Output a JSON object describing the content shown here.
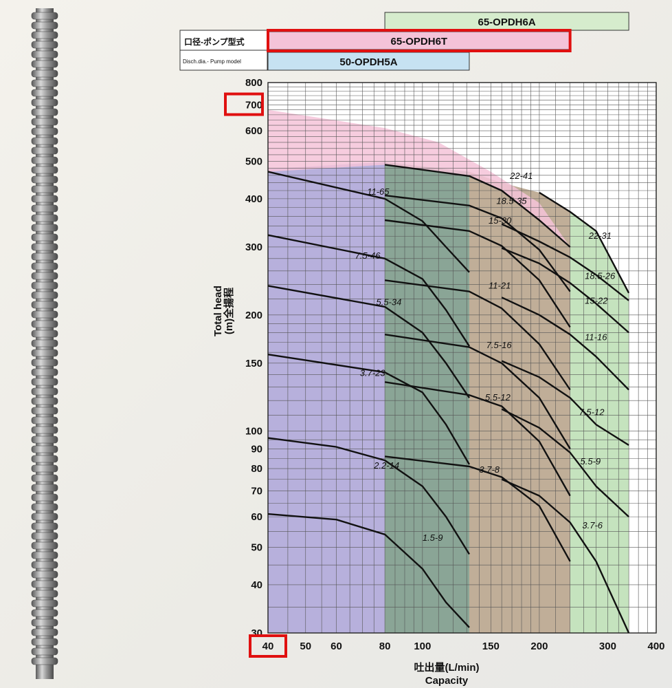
{
  "chart_data": {
    "type": "line",
    "x_scale": "log",
    "y_scale": "log",
    "xlim": [
      40,
      400
    ],
    "ylim": [
      30,
      800
    ],
    "x_ticks": [
      "40",
      "50",
      "60",
      "80",
      "100",
      "150",
      "200",
      "300",
      "400"
    ],
    "x_tick_values": [
      40,
      50,
      60,
      80,
      100,
      150,
      200,
      300,
      400
    ],
    "y_ticks": [
      "800",
      "700",
      "600",
      "500",
      "400",
      "300",
      "200",
      "150",
      "100",
      "90",
      "80",
      "70",
      "60",
      "50",
      "40",
      "30"
    ],
    "y_tick_values": [
      800,
      700,
      600,
      500,
      400,
      300,
      200,
      150,
      100,
      90,
      80,
      70,
      60,
      50,
      40,
      30
    ],
    "xlabel_jp": "吐出量(L/min)",
    "xlabel_en": "Capacity",
    "ylabel_en": "Total head",
    "ylabel_jp": "(m)全揚程",
    "header_label_jp": "口径-ポンプ型式",
    "header_label_en": "Disch.dia.- Pump model",
    "grid": true,
    "models": [
      {
        "name": "65-OPDH6A",
        "x_range": [
          80,
          340
        ],
        "color": "#d6eccd"
      },
      {
        "name": "65-OPDH6T",
        "x_range": [
          40,
          240
        ],
        "color": "#f4c3d8"
      },
      {
        "name": "50-OPDH5A",
        "x_range": [
          40,
          132
        ],
        "color": "#c6e2f2"
      }
    ],
    "regions": [
      {
        "x_range": [
          40,
          80
        ],
        "color": "#b7b0dc"
      },
      {
        "x_range": [
          80,
          132
        ],
        "color": "#8aa596"
      },
      {
        "x_range": [
          132,
          240
        ],
        "color": "#c0ae98"
      },
      {
        "x_range": [
          240,
          340
        ],
        "color": "#c5e3be"
      }
    ],
    "pink_region_top": [
      [
        40,
        680
      ],
      [
        80,
        610
      ],
      [
        110,
        560
      ],
      [
        150,
        470
      ],
      [
        200,
        390
      ],
      [
        240,
        300
      ]
    ],
    "series": [
      {
        "name": "1.5-9",
        "x": [
          40,
          60,
          80,
          100,
          115,
          132
        ],
        "y": [
          61,
          59,
          54,
          44,
          36,
          31
        ],
        "label_at": [
          100,
          52
        ]
      },
      {
        "name": "2.2-14",
        "x": [
          40,
          60,
          80,
          100,
          115,
          132
        ],
        "y": [
          96,
          91,
          84,
          72,
          60,
          48
        ],
        "label_at": [
          75,
          80
        ]
      },
      {
        "name": "3.7-23",
        "x": [
          40,
          80,
          100,
          115,
          132
        ],
        "y": [
          158,
          142,
          126,
          104,
          82
        ],
        "label_at": [
          69,
          139
        ]
      },
      {
        "name": "5.5-34",
        "x": [
          40,
          80,
          100,
          115,
          132
        ],
        "y": [
          238,
          210,
          180,
          150,
          122
        ],
        "label_at": [
          76,
          212
        ]
      },
      {
        "name": "7.5-46",
        "x": [
          40,
          80,
          100,
          115,
          132
        ],
        "y": [
          322,
          280,
          248,
          206,
          166
        ],
        "label_at": [
          67,
          280
        ]
      },
      {
        "name": "11-65",
        "x": [
          40,
          80,
          100,
          115,
          132
        ],
        "y": [
          470,
          400,
          350,
          300,
          258
        ],
        "label_at": [
          72,
          410
        ]
      },
      {
        "name": "3.7-8",
        "x": [
          80,
          132,
          160,
          200,
          240
        ],
        "y": [
          86,
          81,
          76,
          64,
          46
        ],
        "label_at": [
          140,
          78
        ]
      },
      {
        "name": "5.5-12",
        "x": [
          80,
          132,
          160,
          200,
          240
        ],
        "y": [
          134,
          124,
          116,
          94,
          68
        ],
        "label_at": [
          145,
          120
        ]
      },
      {
        "name": "7.5-16",
        "x": [
          80,
          132,
          160,
          200,
          240
        ],
        "y": [
          178,
          165,
          150,
          122,
          90
        ],
        "label_at": [
          146,
          164
        ]
      },
      {
        "name": "11-21",
        "x": [
          80,
          132,
          160,
          200,
          240
        ],
        "y": [
          246,
          230,
          208,
          168,
          128
        ],
        "label_at": [
          148,
          234
        ]
      },
      {
        "name": "15-30",
        "x": [
          80,
          132,
          160,
          200,
          240
        ],
        "y": [
          352,
          330,
          302,
          246,
          186
        ],
        "label_at": [
          148,
          345
        ]
      },
      {
        "name": "18.5-35",
        "x": [
          80,
          132,
          160,
          200,
          240
        ],
        "y": [
          408,
          384,
          356,
          295,
          230
        ],
        "label_at": [
          155,
          388
        ]
      },
      {
        "name": "22-41",
        "x": [
          80,
          132,
          160,
          200,
          240
        ],
        "y": [
          490,
          458,
          420,
          352,
          300
        ],
        "label_at": [
          168,
          450
        ]
      },
      {
        "name": "3.7-6",
        "x": [
          160,
          200,
          240,
          280,
          340
        ],
        "y": [
          75,
          68,
          58,
          46,
          30
        ],
        "label_at": [
          258,
          56
        ]
      },
      {
        "name": "5.5-9",
        "x": [
          160,
          200,
          240,
          280,
          340
        ],
        "y": [
          114,
          102,
          88,
          72,
          60
        ],
        "label_at": [
          255,
          82
        ]
      },
      {
        "name": "7.5-12",
        "x": [
          160,
          200,
          240,
          280,
          340
        ],
        "y": [
          152,
          138,
          122,
          104,
          92
        ],
        "label_at": [
          253,
          110
        ]
      },
      {
        "name": "11-16",
        "x": [
          160,
          200,
          240,
          280,
          340
        ],
        "y": [
          222,
          200,
          178,
          156,
          128
        ],
        "label_at": [
          262,
          172
        ]
      },
      {
        "name": "15-22",
        "x": [
          160,
          200,
          240,
          280,
          340
        ],
        "y": [
          298,
          272,
          242,
          214,
          180
        ],
        "label_at": [
          262,
          214
        ]
      },
      {
        "name": "18.5-26",
        "x": [
          160,
          200,
          240,
          280,
          340
        ],
        "y": [
          344,
          310,
          282,
          254,
          218
        ],
        "label_at": [
          262,
          248
        ]
      },
      {
        "name": "22-31",
        "x": [
          200,
          240,
          280,
          340
        ],
        "y": [
          415,
          370,
          330,
          228
        ],
        "label_at": [
          268,
          315
        ]
      }
    ],
    "highlights": [
      {
        "target": "65-OPDH6T",
        "color": "#e01010"
      },
      {
        "target": "700",
        "color": "#e01010"
      },
      {
        "target": "40",
        "color": "#e01010"
      }
    ]
  }
}
